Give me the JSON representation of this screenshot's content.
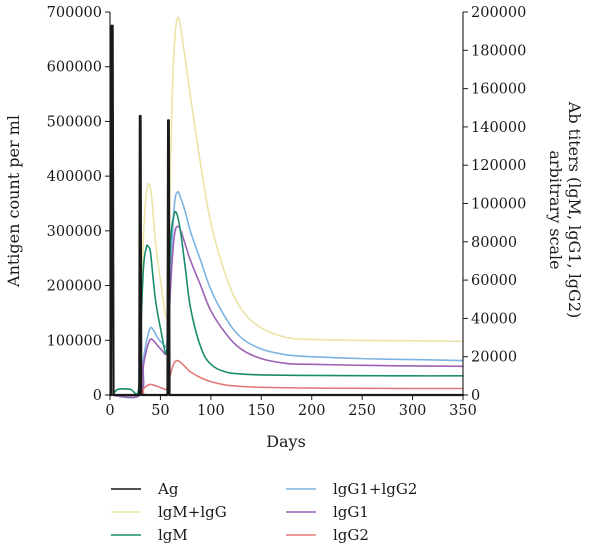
{
  "chart_data": {
    "type": "line",
    "title": "",
    "xlabel": "Days",
    "ylabel_left": "Antigen count per ml",
    "ylabel_right_line1": "Ab titers (lgM, lgG1, lgG2)",
    "ylabel_right_line2": "arbitrary scale",
    "xlim": [
      0,
      350
    ],
    "ylim_left": [
      0,
      700000
    ],
    "ylim_right": [
      0,
      200000
    ],
    "x_ticks": [
      "0",
      "50",
      "100",
      "150",
      "200",
      "250",
      "300",
      "350"
    ],
    "y_left_ticks": [
      "0",
      "100000",
      "200000",
      "300000",
      "400000",
      "500000",
      "600000",
      "700000"
    ],
    "y_right_ticks": [
      "0",
      "20000",
      "40000",
      "60000",
      "80000",
      "100000",
      "120000",
      "140000",
      "160000",
      "180000",
      "200000"
    ],
    "grid": false,
    "legend_position": "bottom",
    "series": [
      {
        "name": "Ag",
        "axis": "left",
        "color": "#1a1a1a",
        "x": [
          0,
          1,
          1.6,
          2.6,
          3.5,
          28,
          29,
          29.6,
          30.3,
          31,
          56,
          57,
          57.6,
          58.3,
          59,
          350
        ],
        "y": [
          0,
          0,
          675000,
          675000,
          0,
          0,
          0,
          510000,
          510000,
          0,
          0,
          0,
          502000,
          502000,
          0,
          0
        ]
      },
      {
        "name": "lgM+lgG",
        "axis": "right",
        "color": "#ece3a6",
        "x": [
          0,
          3,
          8,
          20,
          28,
          30,
          33,
          36,
          39,
          42,
          45,
          50,
          56,
          58,
          60,
          63,
          67,
          72,
          80,
          90,
          100,
          115,
          130,
          150,
          175,
          200,
          250,
          300,
          350
        ],
        "y": [
          0,
          400,
          3000,
          3000,
          2000,
          25000,
          80000,
          105000,
          110000,
          100000,
          80000,
          60000,
          40000,
          55000,
          120000,
          175000,
          197000,
          185000,
          155000,
          120000,
          90000,
          62000,
          45000,
          35000,
          30000,
          29000,
          28500,
          28300,
          28000
        ]
      },
      {
        "name": "lgM",
        "axis": "right",
        "color": "#1a8c6e",
        "x": [
          0,
          3,
          8,
          20,
          28,
          30,
          33,
          36,
          38,
          40,
          42,
          45,
          50,
          56,
          58,
          60,
          63,
          66,
          70,
          75,
          80,
          90,
          100,
          115,
          130,
          150,
          200,
          250,
          300,
          350
        ],
        "y": [
          0,
          400,
          3000,
          3000,
          2000,
          25000,
          65000,
          77000,
          77500,
          75000,
          65000,
          50000,
          35000,
          22000,
          45000,
          80000,
          93000,
          95000,
          85000,
          65000,
          45000,
          25000,
          16000,
          12000,
          11000,
          10500,
          10200,
          10100,
          10000,
          10000
        ]
      },
      {
        "name": "lgG1+lgG2",
        "axis": "right",
        "color": "#7db3e0",
        "x": [
          0,
          30,
          33,
          37,
          40,
          43,
          47,
          52,
          56,
          58,
          61,
          64,
          67,
          70,
          75,
          80,
          90,
          100,
          115,
          130,
          150,
          175,
          200,
          250,
          300,
          350
        ],
        "y": [
          0,
          0,
          18000,
          30000,
          35000,
          34000,
          30000,
          27000,
          26000,
          40000,
          75000,
          100000,
          106000,
          103000,
          95000,
          85000,
          70000,
          55000,
          40000,
          30000,
          24000,
          21000,
          20000,
          19000,
          18500,
          18000
        ]
      },
      {
        "name": "lgG1",
        "axis": "right",
        "color": "#9b62b5",
        "x": [
          0,
          30,
          33,
          37,
          40,
          43,
          47,
          52,
          56,
          58,
          61,
          64,
          67,
          70,
          75,
          80,
          90,
          100,
          115,
          130,
          150,
          175,
          200,
          250,
          300,
          350
        ],
        "y": [
          0,
          0,
          15000,
          25000,
          29000,
          28500,
          26000,
          23000,
          22000,
          35000,
          65000,
          84000,
          88000,
          86000,
          78000,
          70000,
          57000,
          44000,
          32000,
          24000,
          19000,
          16500,
          16000,
          15500,
          15200,
          15000
        ]
      },
      {
        "name": "lgG2",
        "axis": "right",
        "color": "#e07a7a",
        "x": [
          0,
          30,
          33,
          37,
          40,
          43,
          47,
          52,
          56,
          58,
          61,
          64,
          67,
          70,
          75,
          80,
          90,
          100,
          115,
          130,
          150,
          200,
          250,
          300,
          350
        ],
        "y": [
          0,
          0,
          3000,
          5000,
          5500,
          5200,
          4500,
          3500,
          3000,
          6000,
          13000,
          17000,
          18000,
          17000,
          14500,
          12000,
          9000,
          7000,
          5200,
          4500,
          4000,
          3600,
          3500,
          3400,
          3400
        ]
      }
    ]
  }
}
